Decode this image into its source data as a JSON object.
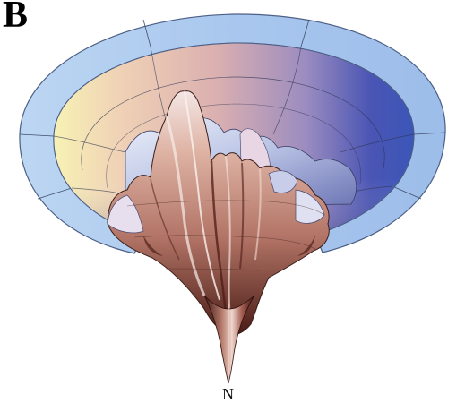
{
  "figure": {
    "panel_label": "B",
    "bottom_label": "N"
  },
  "colors": {
    "rim": "#9ec1ea",
    "inner_warm": "#e9c2ae",
    "inner_cool": "#3c4fb0",
    "inner_light": "#f4eeb0",
    "surface": "#d9a08e",
    "surface_dark": "#4a1a14"
  }
}
